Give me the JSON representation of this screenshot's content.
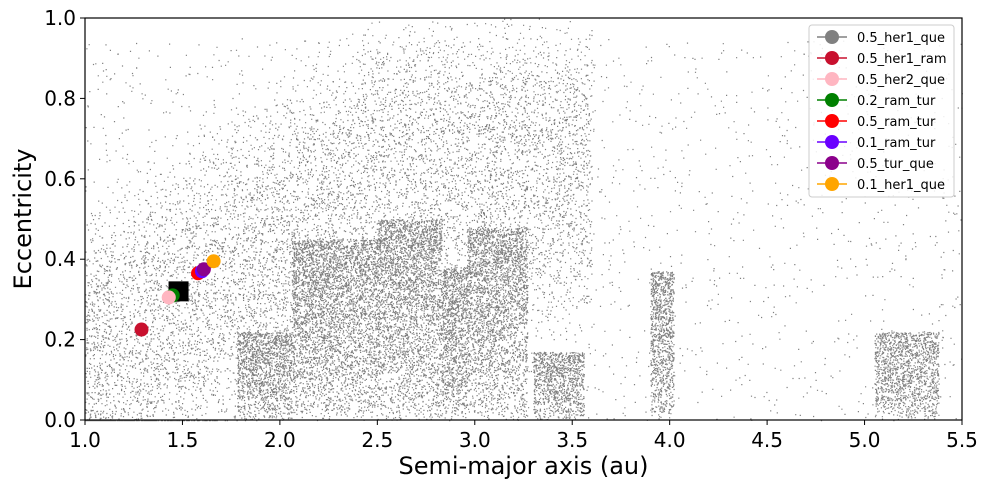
{
  "chart_data": {
    "type": "scatter",
    "xlabel": "Semi-major axis (au)",
    "ylabel": "Eccentricity",
    "xlim": [
      1.0,
      5.5
    ],
    "ylim": [
      0.0,
      1.0
    ],
    "x_ticks": [
      "1.0",
      "1.5",
      "2.0",
      "2.5",
      "3.0",
      "3.5",
      "4.0",
      "4.5",
      "5.0",
      "5.5"
    ],
    "y_ticks": [
      "0.0",
      "0.2",
      "0.4",
      "0.6",
      "0.8",
      "1.0"
    ],
    "grid": false,
    "legend_position": "top-right",
    "background_population": {
      "marker": "dot",
      "color": "#808080",
      "dense_regions": [
        {
          "x_range": [
            1.78,
            2.06
          ],
          "e_max": 0.22
        },
        {
          "x_range": [
            2.06,
            2.5
          ],
          "e_max": 0.45
        },
        {
          "x_range": [
            2.5,
            2.83
          ],
          "e_max": 0.5
        },
        {
          "x_range": [
            2.83,
            2.96
          ],
          "e_max": 0.38
        },
        {
          "x_range": [
            2.96,
            3.27
          ],
          "e_max": 0.48
        },
        {
          "x_range": [
            3.3,
            3.56
          ],
          "e_max": 0.17
        },
        {
          "x_range": [
            3.9,
            4.02
          ],
          "e_max": 0.37
        },
        {
          "x_range": [
            5.05,
            5.38
          ],
          "e_max": 0.22
        }
      ]
    },
    "marker_square": {
      "x": 1.48,
      "y": 0.32,
      "color": "#000000"
    },
    "series": [
      {
        "name": "0.5_her1_que",
        "color": "#808080",
        "x": 1.47,
        "y": 0.31
      },
      {
        "name": "0.5_her1_ram",
        "color": "#c8102e",
        "x": 1.29,
        "y": 0.225
      },
      {
        "name": "0.5_her2_que",
        "color": "#ffb6c1",
        "x": 1.43,
        "y": 0.305
      },
      {
        "name": "0.2_ram_tur",
        "color": "#008000",
        "x": 1.45,
        "y": 0.31
      },
      {
        "name": "0.5_ram_tur",
        "color": "#ff0000",
        "x": 1.58,
        "y": 0.365
      },
      {
        "name": "0.1_ram_tur",
        "color": "#6a00ff",
        "x": 1.6,
        "y": 0.37
      },
      {
        "name": "0.5_tur_que",
        "color": "#8b008b",
        "x": 1.61,
        "y": 0.375
      },
      {
        "name": "0.1_her1_que",
        "color": "#ffa500",
        "x": 1.66,
        "y": 0.395
      }
    ]
  }
}
